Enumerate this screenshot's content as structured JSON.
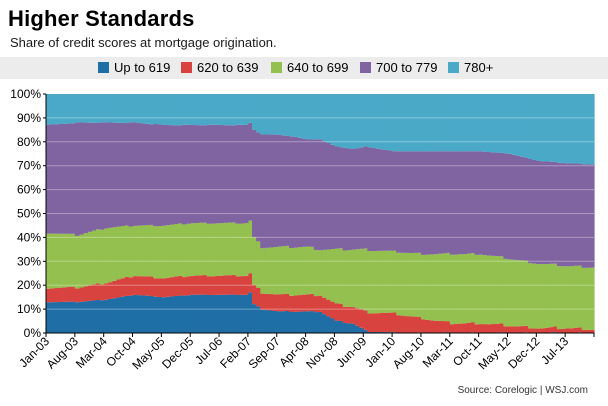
{
  "title": "Higher Standards",
  "subtitle": "Share of credit scores at mortgage origination.",
  "source": "Source: Corelogic  |  WSJ.com",
  "chart_data": {
    "type": "area",
    "stacked": true,
    "ylim": [
      0,
      100
    ],
    "y_ticks": [
      "0%",
      "10%",
      "20%",
      "30%",
      "40%",
      "50%",
      "60%",
      "70%",
      "80%",
      "90%",
      "100%"
    ],
    "x_ticks": [
      "Jan-03",
      "Aug-03",
      "Mar-04",
      "Oct-04",
      "May-05",
      "Dec-05",
      "Jul-06",
      "Feb-07",
      "Sep-07",
      "Apr-08",
      "Nov-08",
      "Jun-09",
      "Jan-10",
      "Aug-10",
      "Mar-11",
      "Oct-11",
      "May-12",
      "Dec-12",
      "Jul-13"
    ],
    "x_index": [
      0,
      7,
      14,
      21,
      28,
      35,
      42,
      49,
      56,
      63,
      70,
      77,
      84,
      91,
      98,
      105,
      112,
      119,
      126
    ],
    "n_months": 133,
    "legend_position": "top",
    "grid": true,
    "colors": [
      "#1f6fa6",
      "#d9433f",
      "#93c04e",
      "#8064a2",
      "#4ba9c8"
    ],
    "series": [
      {
        "name": "Up to 619",
        "keys": [
          [
            0,
            13
          ],
          [
            7,
            13
          ],
          [
            14,
            14
          ],
          [
            21,
            16
          ],
          [
            28,
            15
          ],
          [
            35,
            16
          ],
          [
            42,
            16
          ],
          [
            48,
            16
          ],
          [
            49,
            17
          ],
          [
            50,
            12
          ],
          [
            52,
            10
          ],
          [
            56,
            9
          ],
          [
            60,
            9
          ],
          [
            63,
            9
          ],
          [
            66,
            9
          ],
          [
            70,
            5
          ],
          [
            74,
            4
          ],
          [
            77,
            1
          ],
          [
            84,
            0
          ],
          [
            91,
            0
          ],
          [
            132,
            0
          ]
        ]
      },
      {
        "name": "620 to 639",
        "keys": [
          [
            0,
            6
          ],
          [
            7,
            6
          ],
          [
            14,
            7
          ],
          [
            21,
            8
          ],
          [
            28,
            8
          ],
          [
            35,
            8
          ],
          [
            42,
            8
          ],
          [
            48,
            8
          ],
          [
            49,
            8
          ],
          [
            50,
            8
          ],
          [
            52,
            7
          ],
          [
            56,
            7
          ],
          [
            60,
            7
          ],
          [
            63,
            7
          ],
          [
            66,
            7
          ],
          [
            70,
            7
          ],
          [
            74,
            7
          ],
          [
            77,
            8
          ],
          [
            84,
            8
          ],
          [
            91,
            6
          ],
          [
            98,
            4
          ],
          [
            105,
            4
          ],
          [
            112,
            3
          ],
          [
            119,
            2
          ],
          [
            126,
            2
          ],
          [
            132,
            1.5
          ]
        ]
      },
      {
        "name": "640 to 699",
        "keys": [
          [
            0,
            23
          ],
          [
            7,
            22
          ],
          [
            14,
            23
          ],
          [
            21,
            21
          ],
          [
            28,
            22
          ],
          [
            35,
            22
          ],
          [
            42,
            22
          ],
          [
            48,
            22
          ],
          [
            49,
            22
          ],
          [
            50,
            20
          ],
          [
            52,
            19
          ],
          [
            56,
            20
          ],
          [
            60,
            20
          ],
          [
            63,
            20
          ],
          [
            66,
            19
          ],
          [
            70,
            23
          ],
          [
            74,
            24
          ],
          [
            77,
            26
          ],
          [
            84,
            26
          ],
          [
            91,
            27
          ],
          [
            98,
            29
          ],
          [
            105,
            29
          ],
          [
            112,
            28
          ],
          [
            119,
            27
          ],
          [
            126,
            26
          ],
          [
            132,
            26
          ]
        ]
      },
      {
        "name": "700 to 779",
        "keys": [
          [
            0,
            45
          ],
          [
            7,
            47
          ],
          [
            14,
            44
          ],
          [
            21,
            43
          ],
          [
            28,
            42
          ],
          [
            35,
            41
          ],
          [
            42,
            41
          ],
          [
            48,
            41
          ],
          [
            49,
            41
          ],
          [
            50,
            45
          ],
          [
            52,
            47
          ],
          [
            56,
            47
          ],
          [
            60,
            46
          ],
          [
            63,
            45
          ],
          [
            66,
            46
          ],
          [
            70,
            43
          ],
          [
            74,
            42
          ],
          [
            77,
            43
          ],
          [
            84,
            42
          ],
          [
            91,
            43
          ],
          [
            98,
            43
          ],
          [
            105,
            43
          ],
          [
            112,
            44
          ],
          [
            119,
            43
          ],
          [
            126,
            43
          ],
          [
            132,
            43
          ]
        ]
      },
      {
        "name": "780+",
        "keys": [
          [
            0,
            13
          ],
          [
            7,
            12
          ],
          [
            14,
            12
          ],
          [
            21,
            12
          ],
          [
            28,
            13
          ],
          [
            35,
            13
          ],
          [
            42,
            13
          ],
          [
            48,
            13
          ],
          [
            49,
            12
          ],
          [
            50,
            15
          ],
          [
            52,
            17
          ],
          [
            56,
            17
          ],
          [
            60,
            18
          ],
          [
            63,
            19
          ],
          [
            66,
            19
          ],
          [
            70,
            22
          ],
          [
            74,
            23
          ],
          [
            77,
            22
          ],
          [
            84,
            24
          ],
          [
            91,
            24
          ],
          [
            98,
            24
          ],
          [
            105,
            24
          ],
          [
            112,
            25
          ],
          [
            119,
            28
          ],
          [
            126,
            29
          ],
          [
            132,
            29.5
          ]
        ]
      }
    ]
  }
}
